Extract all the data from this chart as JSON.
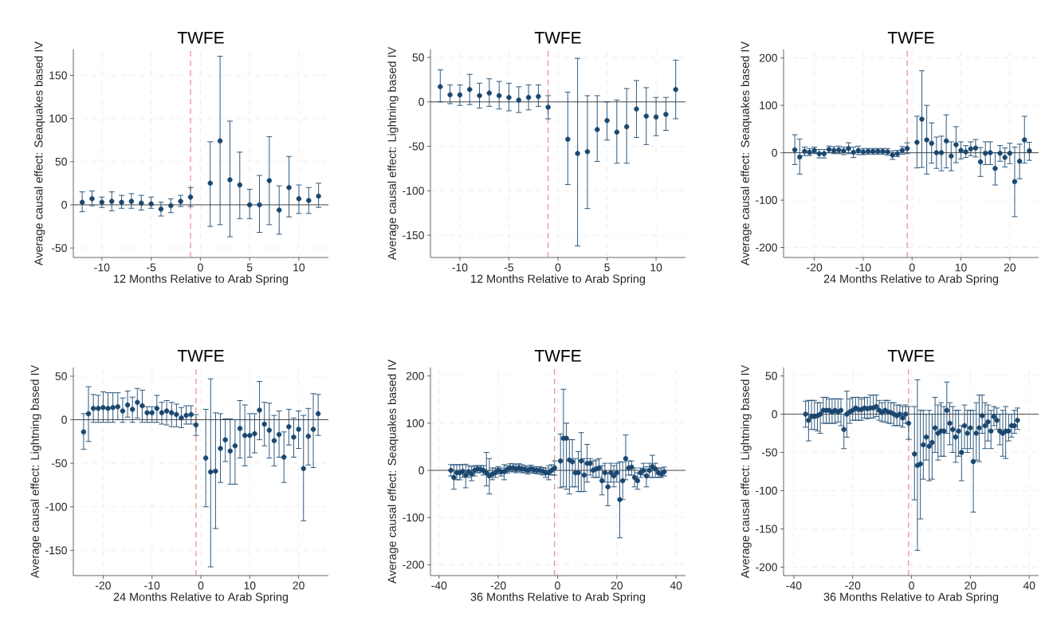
{
  "chart_data": [
    {
      "type": "scatter",
      "title": "TWFE",
      "xlabel": "12 Months Relative to Arab Spring",
      "ylabel": "Average causal effect: Seaquakes based IV",
      "color": "#1a476f",
      "marker": "circle",
      "grid": true,
      "xlim": [
        -12.9,
        13
      ],
      "ylim": [
        -61,
        180
      ],
      "xticks": [
        -10,
        -5,
        0,
        5,
        10
      ],
      "yticks": [
        -50,
        0,
        50,
        100,
        150
      ],
      "ref_lines": [
        {
          "axis": "y",
          "value": 0,
          "color": "#333333",
          "line_style": "solid"
        },
        {
          "axis": "x",
          "value": -1,
          "color": "#e0625f",
          "line_style": "dashed"
        }
      ],
      "x": [
        -12,
        -11,
        -10,
        -9,
        -8,
        -7,
        -6,
        -5,
        -4,
        -3,
        -2,
        -1,
        1,
        2,
        3,
        4,
        5,
        6,
        7,
        8,
        9,
        10,
        11,
        12
      ],
      "values": [
        3,
        7,
        3,
        4,
        3,
        4,
        2,
        1,
        -5,
        -1,
        4,
        9,
        25,
        74,
        29,
        23,
        0,
        0,
        28,
        -6,
        20,
        7,
        5,
        10
      ],
      "errors": [
        [
          -8,
          15
        ],
        [
          -1,
          16
        ],
        [
          -3,
          9
        ],
        [
          -7,
          15
        ],
        [
          -4,
          11
        ],
        [
          -4,
          13
        ],
        [
          -6,
          11
        ],
        [
          -4,
          9
        ],
        [
          -13,
          3
        ],
        [
          -9,
          7
        ],
        [
          -2,
          11
        ],
        [
          -2,
          20
        ],
        [
          -25,
          73
        ],
        [
          -23,
          172
        ],
        [
          -37,
          97
        ],
        [
          -16,
          61
        ],
        [
          -16,
          18
        ],
        [
          -32,
          34
        ],
        [
          -23,
          79
        ],
        [
          -34,
          22
        ],
        [
          -14,
          56
        ],
        [
          -10,
          23
        ],
        [
          -10,
          20
        ],
        [
          -3,
          25
        ]
      ]
    },
    {
      "type": "scatter",
      "title": "TWFE",
      "xlabel": "12 Months Relative to Arab Spring",
      "ylabel": "Average causal effect: Lightning based IV",
      "color": "#1a476f",
      "marker": "circle",
      "grid": true,
      "xlim": [
        -13,
        13
      ],
      "ylim": [
        -175,
        59
      ],
      "xticks": [
        -10,
        -5,
        0,
        5,
        10
      ],
      "yticks": [
        -150,
        -100,
        -50,
        0,
        50
      ],
      "ref_lines": [
        {
          "axis": "y",
          "value": 0,
          "color": "#333333",
          "line_style": "solid"
        },
        {
          "axis": "x",
          "value": -1,
          "color": "#e0625f",
          "line_style": "dashed"
        }
      ],
      "x": [
        -12,
        -11,
        -10,
        -9,
        -8,
        -7,
        -6,
        -5,
        -4,
        -3,
        -2,
        -1,
        1,
        2,
        3,
        4,
        5,
        6,
        7,
        8,
        9,
        10,
        11,
        12
      ],
      "values": [
        17,
        8,
        8,
        14,
        7,
        10,
        7,
        5,
        2,
        5,
        6,
        -6,
        -42,
        -58,
        -56,
        -31,
        -21,
        -34,
        -28,
        -8,
        -16,
        -17,
        -14,
        14
      ],
      "errors": [
        [
          0,
          36
        ],
        [
          -2,
          19
        ],
        [
          -4,
          19
        ],
        [
          -3,
          31
        ],
        [
          -7,
          21
        ],
        [
          -5,
          26
        ],
        [
          -8,
          23
        ],
        [
          -10,
          21
        ],
        [
          -12,
          17
        ],
        [
          -9,
          19
        ],
        [
          -5,
          19
        ],
        [
          -19,
          7
        ],
        [
          -93,
          11
        ],
        [
          -162,
          49
        ],
        [
          -120,
          7
        ],
        [
          -67,
          7
        ],
        [
          -43,
          0
        ],
        [
          -69,
          2
        ],
        [
          -69,
          15
        ],
        [
          -40,
          24
        ],
        [
          -48,
          16
        ],
        [
          -38,
          5
        ],
        [
          -32,
          5
        ],
        [
          -19,
          47
        ]
      ]
    },
    {
      "type": "scatter",
      "title": "TWFE",
      "xlabel": "24 Months Relative to Arab Spring",
      "ylabel": "Average causal effect: Seaquakes based IV",
      "color": "#1a476f",
      "marker": "circle",
      "grid": true,
      "xlim": [
        -26.3,
        25.9
      ],
      "ylim": [
        -221,
        218
      ],
      "xticks": [
        -20,
        -10,
        0,
        10,
        20
      ],
      "yticks": [
        -200,
        -100,
        0,
        100,
        200
      ],
      "ref_lines": [
        {
          "axis": "y",
          "value": 0,
          "color": "#333333",
          "line_style": "solid"
        },
        {
          "axis": "x",
          "value": -1,
          "color": "#e0625f",
          "line_style": "dashed"
        }
      ],
      "x": [
        -24,
        -23,
        -22,
        -21,
        -20,
        -19,
        -18,
        -17,
        -16,
        -15,
        -14,
        -13,
        -12,
        -11,
        -10,
        -9,
        -8,
        -7,
        -6,
        -5,
        -4,
        -3,
        -2,
        -1,
        1,
        2,
        3,
        4,
        5,
        6,
        7,
        8,
        9,
        10,
        11,
        12,
        13,
        14,
        15,
        16,
        17,
        18,
        19,
        20,
        21,
        22,
        23,
        24
      ],
      "values": [
        6,
        -9,
        3,
        1,
        5,
        -2,
        -2,
        7,
        5,
        6,
        4,
        9,
        1,
        5,
        2,
        3,
        3,
        3,
        3,
        2,
        -5,
        -2,
        5,
        9,
        22,
        71,
        27,
        20,
        0,
        0,
        25,
        -7,
        17,
        5,
        2,
        8,
        10,
        -19,
        -1,
        0,
        -33,
        -1,
        -10,
        -1,
        -61,
        -18,
        27,
        4
      ],
      "errors": [
        [
          -25,
          38
        ],
        [
          -45,
          29
        ],
        [
          -6,
          12
        ],
        [
          -6,
          9
        ],
        [
          -2,
          12
        ],
        [
          -11,
          7
        ],
        [
          -11,
          7
        ],
        [
          0,
          14
        ],
        [
          -2,
          13
        ],
        [
          -2,
          14
        ],
        [
          -4,
          12
        ],
        [
          -2,
          21
        ],
        [
          -10,
          12
        ],
        [
          -4,
          14
        ],
        [
          -4,
          9
        ],
        [
          -3,
          9
        ],
        [
          -3,
          9
        ],
        [
          -3,
          9
        ],
        [
          -3,
          9
        ],
        [
          -5,
          9
        ],
        [
          -14,
          4
        ],
        [
          -8,
          5
        ],
        [
          -3,
          13
        ],
        [
          -2,
          21
        ],
        [
          -32,
          77
        ],
        [
          -31,
          173
        ],
        [
          -45,
          100
        ],
        [
          -22,
          63
        ],
        [
          -33,
          33
        ],
        [
          -38,
          35
        ],
        [
          -32,
          80
        ],
        [
          -38,
          23
        ],
        [
          -21,
          55
        ],
        [
          -13,
          23
        ],
        [
          -10,
          15
        ],
        [
          -6,
          23
        ],
        [
          -9,
          28
        ],
        [
          -50,
          11
        ],
        [
          -25,
          23
        ],
        [
          -25,
          23
        ],
        [
          -68,
          0
        ],
        [
          -18,
          15
        ],
        [
          -30,
          10
        ],
        [
          -23,
          20
        ],
        [
          -135,
          12
        ],
        [
          -55,
          18
        ],
        [
          -22,
          77
        ],
        [
          -16,
          22
        ]
      ]
    },
    {
      "type": "scatter",
      "title": "TWFE",
      "xlabel": "24 Months Relative to Arab Spring",
      "ylabel": "Average causal effect: Lightning based IV",
      "color": "#1a476f",
      "marker": "circle",
      "grid": true,
      "xlim": [
        -26.1,
        26.1
      ],
      "ylim": [
        -179,
        60
      ],
      "xticks": [
        -20,
        -10,
        0,
        10,
        20
      ],
      "yticks": [
        -150,
        -100,
        -50,
        0,
        50
      ],
      "ref_lines": [
        {
          "axis": "y",
          "value": 0,
          "color": "#333333",
          "line_style": "solid"
        },
        {
          "axis": "x",
          "value": -1,
          "color": "#e0625f",
          "line_style": "dashed"
        }
      ],
      "x": [
        -24,
        -23,
        -22,
        -21,
        -20,
        -19,
        -18,
        -17,
        -16,
        -15,
        -14,
        -13,
        -12,
        -11,
        -10,
        -9,
        -8,
        -7,
        -6,
        -5,
        -4,
        -3,
        -2,
        -1,
        1,
        2,
        3,
        4,
        5,
        6,
        7,
        8,
        9,
        10,
        11,
        12,
        13,
        14,
        15,
        16,
        17,
        18,
        19,
        20,
        21,
        22,
        23,
        24
      ],
      "values": [
        -14,
        7,
        13,
        13,
        14,
        13,
        14,
        15,
        10,
        17,
        12,
        20,
        16,
        8,
        8,
        13,
        8,
        10,
        8,
        6,
        2,
        5,
        6,
        -6,
        -44,
        -60,
        -59,
        -33,
        -23,
        -36,
        -30,
        -10,
        -18,
        -18,
        -16,
        11,
        -5,
        -12,
        -24,
        -17,
        -43,
        -8,
        -20,
        -11,
        -56,
        -19,
        -11,
        7
      ],
      "errors": [
        [
          -34,
          7
        ],
        [
          -25,
          38
        ],
        [
          -3,
          29
        ],
        [
          -3,
          28
        ],
        [
          -3,
          32
        ],
        [
          -3,
          31
        ],
        [
          -3,
          31
        ],
        [
          0,
          31
        ],
        [
          -3,
          25
        ],
        [
          3,
          33
        ],
        [
          -3,
          26
        ],
        [
          2,
          36
        ],
        [
          -3,
          34
        ],
        [
          -3,
          15
        ],
        [
          -3,
          15
        ],
        [
          -3,
          28
        ],
        [
          -5,
          20
        ],
        [
          -6,
          22
        ],
        [
          -8,
          20
        ],
        [
          -8,
          18
        ],
        [
          -9,
          14
        ],
        [
          -5,
          16
        ],
        [
          -5,
          16
        ],
        [
          -18,
          6
        ],
        [
          -100,
          12
        ],
        [
          -169,
          47
        ],
        [
          -125,
          8
        ],
        [
          -72,
          7
        ],
        [
          -48,
          1
        ],
        [
          -74,
          1
        ],
        [
          -74,
          0
        ],
        [
          -44,
          22
        ],
        [
          -53,
          17
        ],
        [
          -43,
          7
        ],
        [
          -38,
          7
        ],
        [
          -23,
          44
        ],
        [
          -30,
          20
        ],
        [
          -44,
          19
        ],
        [
          -53,
          5
        ],
        [
          -43,
          10
        ],
        [
          -72,
          -14
        ],
        [
          -29,
          12
        ],
        [
          -43,
          2
        ],
        [
          -33,
          10
        ],
        [
          -116,
          5
        ],
        [
          -52,
          13
        ],
        [
          -55,
          30
        ],
        [
          -18,
          29
        ]
      ]
    },
    {
      "type": "scatter",
      "title": "TWFE",
      "xlabel": "36 Months Relative to Arab Spring",
      "ylabel": "Average causal effect: Seaquakes based IV",
      "color": "#1a476f",
      "marker": "circle",
      "grid": true,
      "xlim": [
        -42.9,
        43.2
      ],
      "ylim": [
        -223,
        218
      ],
      "xticks": [
        -40,
        -20,
        0,
        20,
        40
      ],
      "yticks": [
        -200,
        -100,
        0,
        100,
        200
      ],
      "ref_lines": [
        {
          "axis": "y",
          "value": 0,
          "color": "#333333",
          "line_style": "solid"
        },
        {
          "axis": "x",
          "value": -1,
          "color": "#e0625f",
          "line_style": "dashed"
        }
      ],
      "x": [
        -36,
        -35,
        -34,
        -33,
        -32,
        -31,
        -30,
        -29,
        -28,
        -27,
        -26,
        -25,
        -24,
        -23,
        -22,
        -21,
        -20,
        -19,
        -18,
        -17,
        -16,
        -15,
        -14,
        -13,
        -12,
        -11,
        -10,
        -9,
        -8,
        -7,
        -6,
        -5,
        -4,
        -3,
        -2,
        -1,
        1,
        2,
        3,
        4,
        5,
        6,
        7,
        8,
        9,
        10,
        11,
        12,
        13,
        14,
        15,
        16,
        17,
        18,
        19,
        20,
        21,
        22,
        23,
        24,
        25,
        26,
        27,
        28,
        29,
        30,
        31,
        32,
        33,
        34,
        35,
        36
      ],
      "values": [
        0,
        -15,
        -5,
        -5,
        -2,
        -10,
        -3,
        -8,
        0,
        3,
        2,
        0,
        -5,
        -12,
        -8,
        -5,
        0,
        -3,
        -3,
        2,
        5,
        5,
        3,
        5,
        3,
        2,
        0,
        3,
        1,
        0,
        0,
        -2,
        -5,
        -5,
        0,
        5,
        20,
        68,
        68,
        22,
        18,
        -5,
        -5,
        20,
        -10,
        15,
        15,
        0,
        3,
        5,
        -22,
        -5,
        -35,
        -5,
        -12,
        -5,
        -62,
        -22,
        25,
        5,
        7,
        -15,
        -22,
        -5,
        0,
        -12,
        0,
        8,
        3,
        -5,
        -8,
        -3
      ],
      "errors": [
        [
          -12,
          12
        ],
        [
          -40,
          12
        ],
        [
          -20,
          12
        ],
        [
          -20,
          12
        ],
        [
          -15,
          12
        ],
        [
          -37,
          13
        ],
        [
          -15,
          10
        ],
        [
          -22,
          8
        ],
        [
          -12,
          10
        ],
        [
          -5,
          10
        ],
        [
          -5,
          10
        ],
        [
          -10,
          10
        ],
        [
          -33,
          38
        ],
        [
          -50,
          25
        ],
        [
          -20,
          5
        ],
        [
          -15,
          5
        ],
        [
          -8,
          8
        ],
        [
          -12,
          5
        ],
        [
          -20,
          12
        ],
        [
          -6,
          10
        ],
        [
          -3,
          14
        ],
        [
          -3,
          14
        ],
        [
          -5,
          12
        ],
        [
          -3,
          14
        ],
        [
          -5,
          12
        ],
        [
          -5,
          10
        ],
        [
          -8,
          8
        ],
        [
          -5,
          11
        ],
        [
          -6,
          8
        ],
        [
          -7,
          7
        ],
        [
          -8,
          8
        ],
        [
          -10,
          6
        ],
        [
          -15,
          5
        ],
        [
          -20,
          10
        ],
        [
          -10,
          12
        ],
        [
          -10,
          20
        ],
        [
          -37,
          77
        ],
        [
          -35,
          172
        ],
        [
          -40,
          100
        ],
        [
          -50,
          65
        ],
        [
          -35,
          65
        ],
        [
          -35,
          25
        ],
        [
          -45,
          40
        ],
        [
          -45,
          80
        ],
        [
          -45,
          25
        ],
        [
          -25,
          55
        ],
        [
          -10,
          25
        ],
        [
          -15,
          20
        ],
        [
          -15,
          22
        ],
        [
          -15,
          25
        ],
        [
          -52,
          10
        ],
        [
          -25,
          15
        ],
        [
          -75,
          -5
        ],
        [
          -25,
          15
        ],
        [
          -35,
          10
        ],
        [
          -25,
          15
        ],
        [
          -143,
          18
        ],
        [
          -62,
          18
        ],
        [
          -20,
          75
        ],
        [
          -10,
          20
        ],
        [
          -10,
          20
        ],
        [
          -35,
          5
        ],
        [
          -40,
          -5
        ],
        [
          -15,
          5
        ],
        [
          -10,
          15
        ],
        [
          -35,
          8
        ],
        [
          -15,
          15
        ],
        [
          -15,
          32
        ],
        [
          -15,
          15
        ],
        [
          -15,
          5
        ],
        [
          -15,
          5
        ],
        [
          -12,
          7
        ]
      ]
    },
    {
      "type": "scatter",
      "title": "TWFE",
      "xlabel": "36 Months Relative to Arab Spring",
      "ylabel": "Average causal effect: Lightning based IV",
      "color": "#1a476f",
      "marker": "circle",
      "grid": true,
      "xlim": [
        -43.5,
        43.2
      ],
      "ylim": [
        -211,
        61
      ],
      "xticks": [
        -40,
        -20,
        0,
        20,
        40
      ],
      "yticks": [
        -200,
        -150,
        -100,
        -50,
        0,
        50
      ],
      "ref_lines": [
        {
          "axis": "y",
          "value": 0,
          "color": "#333333",
          "line_style": "solid"
        },
        {
          "axis": "x",
          "value": -1,
          "color": "#e0625f",
          "line_style": "dashed"
        }
      ],
      "x": [
        -36,
        -35,
        -34,
        -33,
        -32,
        -31,
        -30,
        -29,
        -28,
        -27,
        -26,
        -25,
        -24,
        -23,
        -22,
        -21,
        -20,
        -19,
        -18,
        -17,
        -16,
        -15,
        -14,
        -13,
        -12,
        -11,
        -10,
        -9,
        -8,
        -7,
        -6,
        -5,
        -4,
        -3,
        -2,
        -1,
        1,
        2,
        3,
        4,
        5,
        6,
        7,
        8,
        9,
        10,
        11,
        12,
        13,
        14,
        15,
        16,
        17,
        18,
        19,
        20,
        21,
        22,
        23,
        24,
        25,
        26,
        27,
        28,
        29,
        30,
        31,
        32,
        33,
        34,
        35,
        36
      ],
      "values": [
        0,
        -8,
        -3,
        -3,
        -2,
        0,
        5,
        5,
        5,
        3,
        5,
        3,
        5,
        -20,
        0,
        3,
        5,
        8,
        6,
        6,
        8,
        7,
        8,
        8,
        10,
        5,
        2,
        5,
        3,
        2,
        0,
        -2,
        0,
        -5,
        0,
        -12,
        -52,
        -67,
        -65,
        -40,
        -30,
        -42,
        -37,
        -18,
        -25,
        -22,
        -22,
        5,
        -12,
        -20,
        -30,
        -22,
        -50,
        -15,
        -25,
        -18,
        -62,
        -25,
        -18,
        -2,
        -15,
        -10,
        -22,
        -3,
        -8,
        -22,
        -25,
        -22,
        -22,
        -15,
        -15,
        -8
      ],
      "errors": [
        [
          -17,
          17
        ],
        [
          -35,
          18
        ],
        [
          -20,
          18
        ],
        [
          -20,
          18
        ],
        [
          -22,
          15
        ],
        [
          -25,
          15
        ],
        [
          -12,
          22
        ],
        [
          -12,
          22
        ],
        [
          -12,
          20
        ],
        [
          -12,
          20
        ],
        [
          -12,
          20
        ],
        [
          -10,
          20
        ],
        [
          -15,
          20
        ],
        [
          -45,
          0
        ],
        [
          -30,
          30
        ],
        [
          -12,
          20
        ],
        [
          -8,
          22
        ],
        [
          -8,
          22
        ],
        [
          -8,
          22
        ],
        [
          -8,
          20
        ],
        [
          -5,
          22
        ],
        [
          -6,
          22
        ],
        [
          -5,
          25
        ],
        [
          -5,
          25
        ],
        [
          -3,
          25
        ],
        [
          -8,
          18
        ],
        [
          -10,
          15
        ],
        [
          -10,
          18
        ],
        [
          -12,
          18
        ],
        [
          -12,
          15
        ],
        [
          -15,
          15
        ],
        [
          -15,
          12
        ],
        [
          -15,
          12
        ],
        [
          -17,
          10
        ],
        [
          -12,
          12
        ],
        [
          -33,
          10
        ],
        [
          -112,
          10
        ],
        [
          -178,
          45
        ],
        [
          -137,
          5
        ],
        [
          -85,
          5
        ],
        [
          -60,
          0
        ],
        [
          -87,
          5
        ],
        [
          -85,
          0
        ],
        [
          -50,
          22
        ],
        [
          -60,
          12
        ],
        [
          -55,
          15
        ],
        [
          -55,
          10
        ],
        [
          -25,
          42
        ],
        [
          -40,
          15
        ],
        [
          -50,
          10
        ],
        [
          -63,
          5
        ],
        [
          -55,
          5
        ],
        [
          -87,
          -15
        ],
        [
          -45,
          12
        ],
        [
          -50,
          5
        ],
        [
          -45,
          5
        ],
        [
          -128,
          5
        ],
        [
          -60,
          15
        ],
        [
          -62,
          25
        ],
        [
          -25,
          25
        ],
        [
          -45,
          15
        ],
        [
          -35,
          12
        ],
        [
          -45,
          5
        ],
        [
          -15,
          10
        ],
        [
          -20,
          8
        ],
        [
          -40,
          0
        ],
        [
          -55,
          5
        ],
        [
          -58,
          10
        ],
        [
          -35,
          0
        ],
        [
          -30,
          0
        ],
        [
          -25,
          5
        ],
        [
          -20,
          8
        ]
      ]
    }
  ]
}
